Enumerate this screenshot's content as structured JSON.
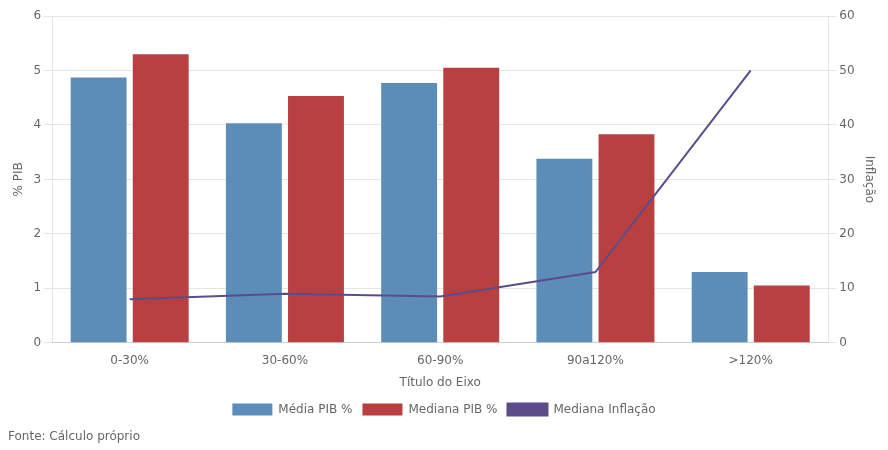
{
  "chart_data": {
    "type": "bar",
    "categories": [
      "0-30%",
      "30-60%",
      "60-90%",
      "90a120%",
      ">120%"
    ],
    "series": [
      {
        "name": "Média PIB %",
        "color": "#5b8db8",
        "type": "bar",
        "values": [
          4.87,
          4.03,
          4.77,
          3.38,
          1.3
        ]
      },
      {
        "name": "Mediana PIB %",
        "color": "#b94040",
        "type": "bar",
        "values": [
          5.3,
          4.53,
          5.05,
          3.83,
          1.05
        ]
      },
      {
        "name": "Mediana Inflação",
        "color": "#5c4d8a",
        "type": "line",
        "marker": "none",
        "axis": "y2",
        "values": [
          8.0,
          9.0,
          8.5,
          13.0,
          50.0
        ]
      }
    ],
    "xlabel": "Título do Eixo",
    "ylabel": "% PIB",
    "y2label": "Inflação",
    "ylim": [
      0,
      6
    ],
    "yticks": [
      0,
      1,
      2,
      3,
      4,
      5,
      6
    ],
    "y2lim": [
      0,
      60
    ],
    "y2ticks": [
      0,
      10,
      20,
      30,
      40,
      50,
      60
    ],
    "grid": true,
    "legend": "bottom",
    "footnote": "Fonte: Cálculo próprio"
  }
}
